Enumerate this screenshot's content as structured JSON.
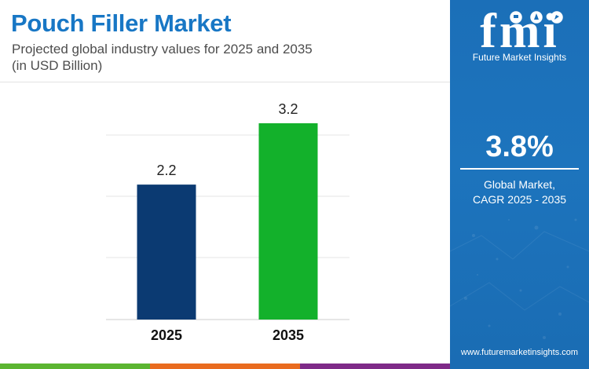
{
  "header": {
    "title": "Pouch Filler Market",
    "subtitle_line1": "Projected global industry values for 2025 and 2035",
    "subtitle_line2": "(in USD Billion)"
  },
  "chart_data": {
    "type": "bar",
    "categories": [
      "2025",
      "2035"
    ],
    "values": [
      2.2,
      3.2
    ],
    "value_labels": [
      "2.2",
      "3.2"
    ],
    "bar_colors": [
      "#0b3a72",
      "#13b12b"
    ],
    "title": "Pouch Filler Market",
    "ylim": [
      0,
      3.2
    ],
    "grid": true,
    "legend": "none"
  },
  "sidebar": {
    "logo_text": "fmi",
    "logo_caption": "Future Market Insights",
    "cagr_value": "3.8%",
    "cagr_label_line1": "Global Market,",
    "cagr_label_line2": "CAGR 2025 - 2035",
    "website": "www.futuremarketinsights.com",
    "background_color": "#1b6fb8"
  },
  "footer": {
    "stripe_colors": [
      "#5bb531",
      "#e96b1f",
      "#7e2a88"
    ]
  }
}
